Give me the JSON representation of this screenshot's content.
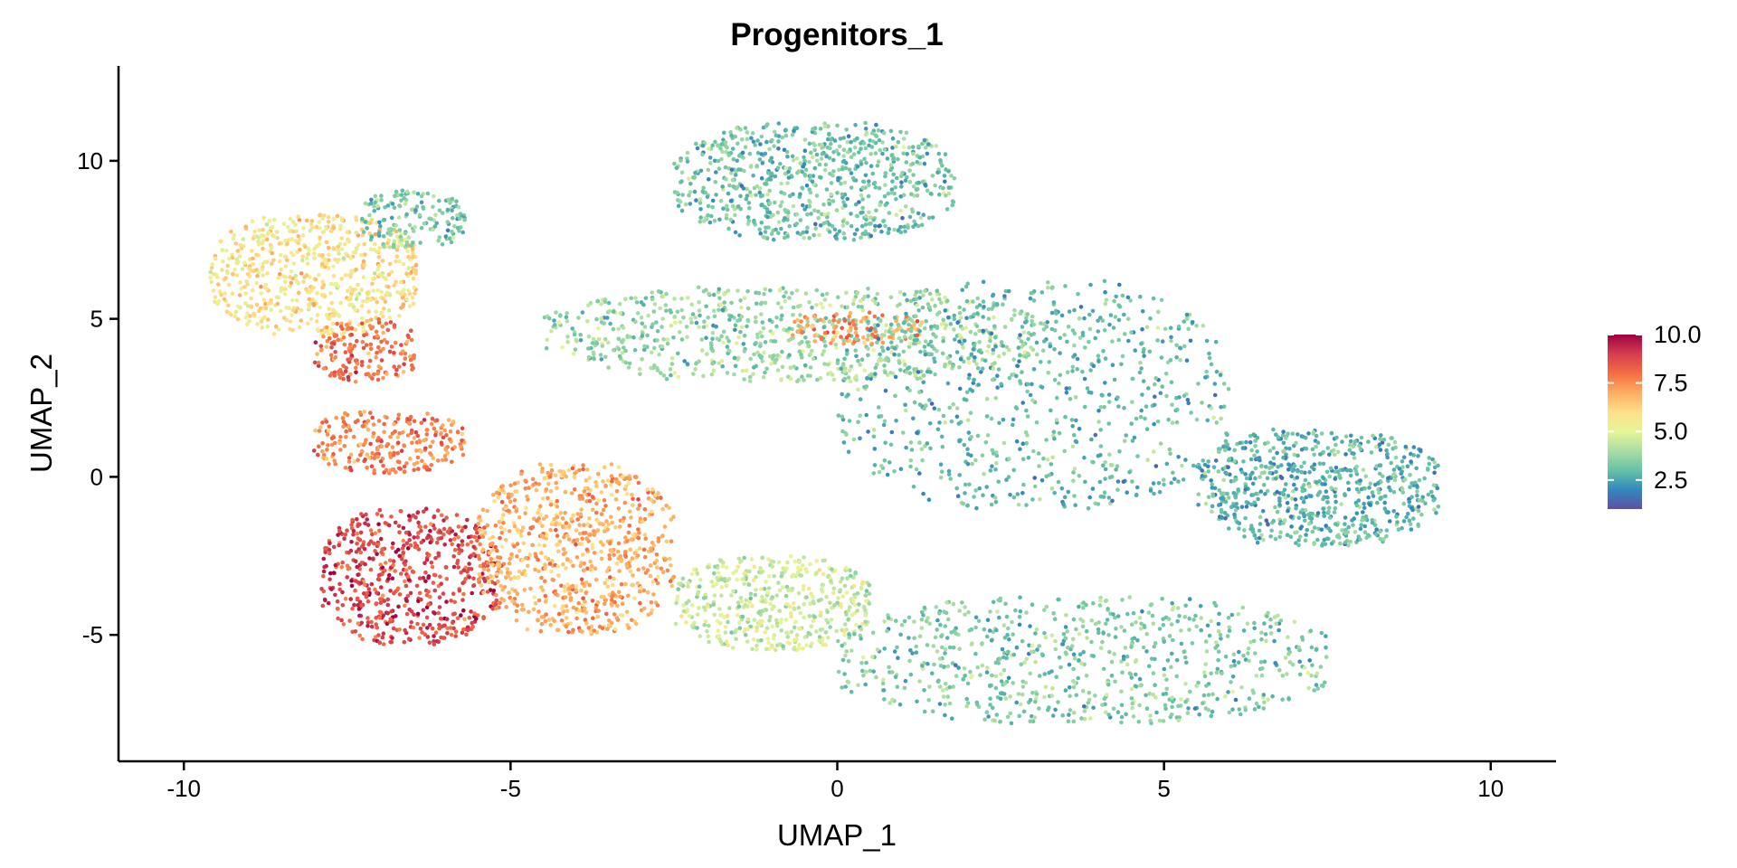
{
  "chart_data": {
    "type": "scatter",
    "title": "Progenitors_1",
    "xlabel": "UMAP_1",
    "ylabel": "UMAP_2",
    "xlim": [
      -11,
      11
    ],
    "ylim": [
      -9,
      13
    ],
    "xticks": [
      -10,
      -5,
      0,
      5,
      10
    ],
    "xtick_labels": [
      "-10",
      "-5",
      "0",
      "5",
      "10"
    ],
    "yticks": [
      -5,
      0,
      5,
      10
    ],
    "ytick_labels": [
      "-5",
      "0",
      "5",
      "10"
    ],
    "grid": false,
    "color_scale": {
      "name": "Spectral (reversed)",
      "range": [
        1,
        10
      ],
      "ticks": [
        2.5,
        5.0,
        7.5,
        10.0
      ],
      "tick_labels": [
        "2.5",
        "5.0",
        "7.5",
        "10.0"
      ],
      "colors": [
        "#5e4fa2",
        "#3288bd",
        "#66c2a5",
        "#abdda4",
        "#e6f598",
        "#fee08b",
        "#fdae61",
        "#f46d43",
        "#d53e4f",
        "#9e0142"
      ],
      "legend_position": "right"
    },
    "regions": [
      {
        "name": "top-left cluster",
        "x": [
          -9.6,
          -6.4
        ],
        "y": [
          4.5,
          8.3
        ],
        "value_mean": 5.8
      },
      {
        "name": "top-left tip",
        "x": [
          -7.3,
          -5.7
        ],
        "y": [
          7.2,
          9.1
        ],
        "value_mean": 3.4
      },
      {
        "name": "upper-mid band",
        "x": [
          -8.0,
          -6.4
        ],
        "y": [
          3.0,
          5.0
        ],
        "value_mean": 7.9
      },
      {
        "name": "left mid cluster",
        "x": [
          -8.1,
          -5.7
        ],
        "y": [
          0.1,
          2.1
        ],
        "value_mean": 7.7
      },
      {
        "name": "bottom-left core",
        "x": [
          -7.9,
          -5.2
        ],
        "y": [
          -5.3,
          -1.0
        ],
        "value_mean": 8.8
      },
      {
        "name": "bottom middle",
        "x": [
          -5.5,
          -2.5
        ],
        "y": [
          -5.0,
          0.4
        ],
        "value_mean": 7.0
      },
      {
        "name": "lower stream",
        "x": [
          -2.5,
          0.5
        ],
        "y": [
          -5.5,
          -2.5
        ],
        "value_mean": 4.6
      },
      {
        "name": "top arm",
        "x": [
          -2.5,
          1.8
        ],
        "y": [
          7.5,
          11.2
        ],
        "value_mean": 3.2
      },
      {
        "name": "middle arm",
        "x": [
          -4.5,
          3.0
        ],
        "y": [
          3.0,
          6.0
        ],
        "value_mean": 3.8
      },
      {
        "name": "orange streak",
        "x": [
          -0.7,
          1.3
        ],
        "y": [
          4.2,
          5.2
        ],
        "value_mean": 7.4
      },
      {
        "name": "right main cluster",
        "x": [
          0.0,
          6.0
        ],
        "y": [
          -1.0,
          6.2
        ],
        "value_mean": 3.0
      },
      {
        "name": "far right lobe",
        "x": [
          5.5,
          9.2
        ],
        "y": [
          -2.2,
          1.5
        ],
        "value_mean": 2.9
      },
      {
        "name": "bottom right band",
        "x": [
          0.0,
          7.5
        ],
        "y": [
          -7.8,
          -3.8
        ],
        "value_mean": 3.4
      }
    ]
  }
}
